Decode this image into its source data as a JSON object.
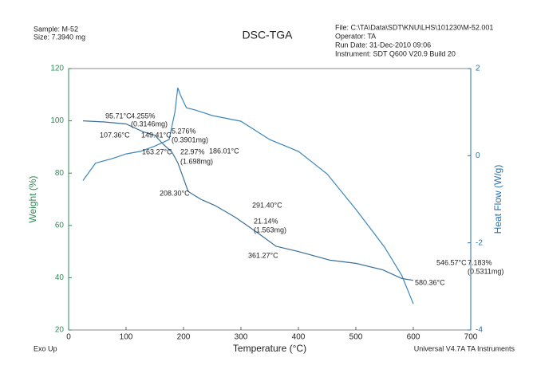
{
  "chart_data": {
    "type": "line",
    "title": "DSC-TGA",
    "header_left": [
      "Sample: M-52",
      "Size: 7.3940 mg"
    ],
    "header_right": [
      "File: C:\\TA\\Data\\SDT\\KNU\\LHS\\101230\\M-52.001",
      "Operator: TA",
      "Run Date: 31-Dec-2010 09:06",
      "Instrument: SDT Q600 V20.9 Build 20"
    ],
    "footer_left": "Exo Up",
    "footer_right": "Universal V4.7A TA Instruments",
    "x_label": "Temperature (°C)",
    "y_label": "Weight (%)",
    "y2_label": "Heat Flow (W/g)",
    "xlim": [
      0,
      700
    ],
    "xticks": [
      0,
      100,
      200,
      300,
      400,
      500,
      600,
      700
    ],
    "ylim": [
      20,
      120
    ],
    "yticks": [
      20,
      40,
      60,
      80,
      100,
      120
    ],
    "y2lim": [
      -4,
      2
    ],
    "y2ticks": [
      -4,
      -2,
      0,
      2
    ],
    "y_color": "#2e8b57",
    "y2_color": "#2a6fa8",
    "series": [
      {
        "name": "Weight",
        "color": "#3b6f95",
        "x": [
          25,
          60,
          100,
          130,
          150,
          165,
          180,
          190,
          200,
          208,
          230,
          255,
          291,
          330,
          361,
          400,
          455,
          500,
          547,
          580,
          600
        ],
        "values": [
          100,
          99.6,
          98.8,
          95.8,
          94.5,
          91,
          88,
          84,
          78,
          73,
          70,
          67.6,
          63,
          57,
          52,
          50,
          46.7,
          45.5,
          43,
          39.7,
          39
        ]
      },
      {
        "name": "Heat Flow",
        "color": "#3a86bd",
        "axis": "y2",
        "x": [
          25,
          47,
          75,
          100,
          125,
          150,
          175,
          185,
          190,
          195,
          205,
          220,
          250,
          300,
          350,
          400,
          450,
          500,
          550,
          580,
          600
        ],
        "values": [
          -0.57,
          -0.17,
          -0.07,
          0.04,
          0.1,
          0.22,
          0.37,
          1.0,
          1.56,
          1.38,
          1.1,
          1.05,
          0.92,
          0.79,
          0.37,
          0.1,
          -0.42,
          -1.23,
          -2.1,
          -2.75,
          -3.4
        ]
      }
    ],
    "annotations": [
      "95.71°C",
      "4.255%",
      "(0.3146mg)",
      "107.36°C",
      "149.41°C",
      "5.276%",
      "(0.3901mg)",
      "163.27°C",
      "22.97%",
      "(1.698mg)",
      "186.01°C",
      "208.30°C",
      "291.40°C",
      "21.14%",
      "(1.563mg)",
      "361.27°C",
      "546.57°C",
      "7.183%",
      "(0.5311mg)",
      "580.36°C"
    ]
  }
}
